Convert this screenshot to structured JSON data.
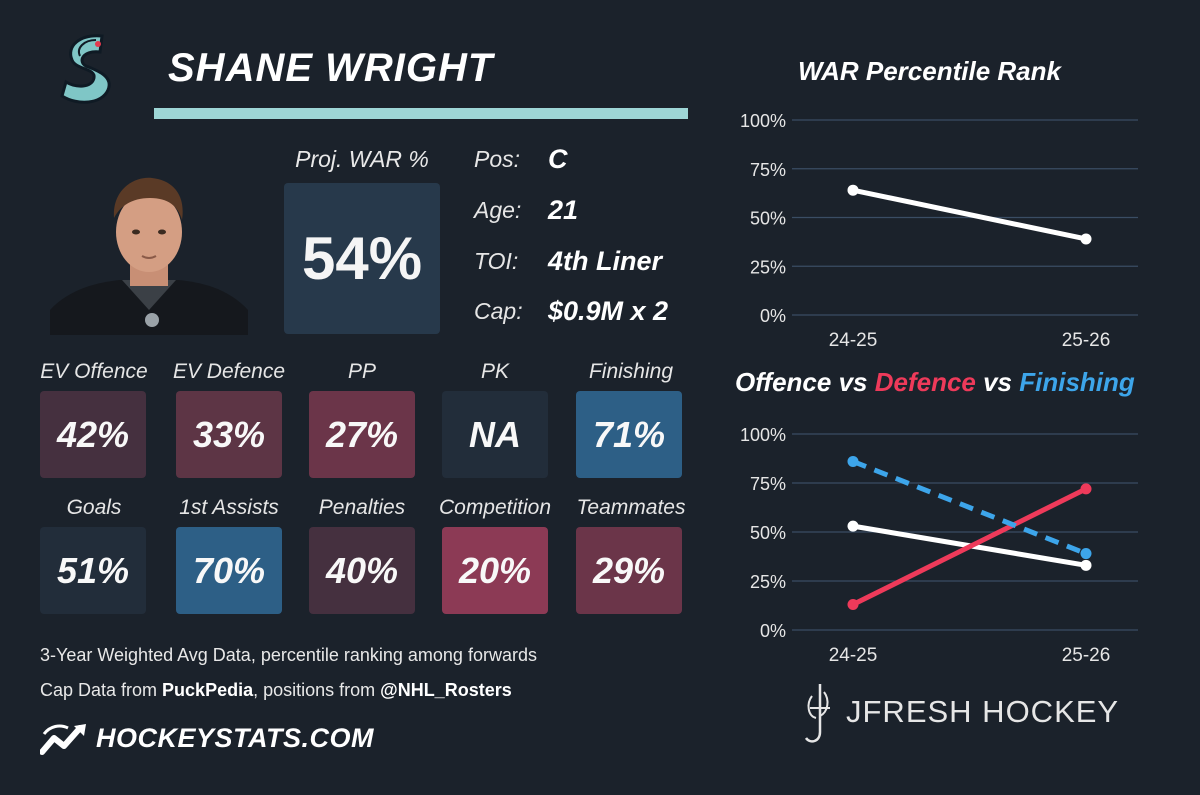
{
  "player": {
    "name": "SHANE WRIGHT",
    "team_logo": "seattle-kraken-logo",
    "photo": "player-headshot"
  },
  "war": {
    "label": "Proj. WAR %",
    "value": "54%",
    "color": "#27394b"
  },
  "info": [
    {
      "label": "Pos:",
      "value": "C"
    },
    {
      "label": "Age:",
      "value": "21"
    },
    {
      "label": "TOI:",
      "value": "4th Liner"
    },
    {
      "label": "Cap:",
      "value": "$0.9M x 2"
    }
  ],
  "tiles": [
    {
      "label": "EV Offence",
      "value": "42%",
      "color": "#45303f"
    },
    {
      "label": "EV Defence",
      "value": "33%",
      "color": "#5d3545"
    },
    {
      "label": "PP",
      "value": "27%",
      "color": "#6b3549"
    },
    {
      "label": "PK",
      "value": "NA",
      "color": "#222d3a"
    },
    {
      "label": "Finishing",
      "value": "71%",
      "color": "#2d5f86"
    },
    {
      "label": "Goals",
      "value": "51%",
      "color": "#222d3a"
    },
    {
      "label": "1st Assists",
      "value": "70%",
      "color": "#2d5f86"
    },
    {
      "label": "Penalties",
      "value": "40%",
      "color": "#45303f"
    },
    {
      "label": "Competition",
      "value": "20%",
      "color": "#8c3a55"
    },
    {
      "label": "Teammates",
      "value": "29%",
      "color": "#6b3549"
    }
  ],
  "notes": {
    "line1": "3-Year Weighted Avg Data, percentile ranking among forwards",
    "line2_prefix": "Cap Data from ",
    "line2_source": "PuckPedia",
    "line2_mid": ", positions from ",
    "line2_handle": "@NHL_Rosters"
  },
  "branding": {
    "site": "HOCKEYSTATS.COM",
    "site_icon": "hockeystats-chart-icon",
    "author": "JFRESH HOCKEY",
    "author_icon": "jfresh-monogram-icon"
  },
  "chart_data": [
    {
      "type": "line",
      "title": "WAR Percentile Rank",
      "categories": [
        "24-25",
        "25-26"
      ],
      "yticks": [
        "0%",
        "25%",
        "50%",
        "75%",
        "100%"
      ],
      "ylim": [
        0,
        100
      ],
      "grid": true,
      "series": [
        {
          "values": [
            64,
            39
          ],
          "color": "#ffffff",
          "dash": false
        }
      ]
    },
    {
      "type": "line",
      "title_parts": [
        {
          "text": "Offence",
          "color": "#ffffff"
        },
        {
          "text": " vs ",
          "color": "#ffffff"
        },
        {
          "text": "Defence",
          "color": "#ee3a5a"
        },
        {
          "text": " vs ",
          "color": "#ffffff"
        },
        {
          "text": "Finishing",
          "color": "#3da5ea"
        }
      ],
      "categories": [
        "24-25",
        "25-26"
      ],
      "yticks": [
        "0%",
        "25%",
        "50%",
        "75%",
        "100%"
      ],
      "ylim": [
        0,
        100
      ],
      "grid": true,
      "series": [
        {
          "name": "Offence",
          "values": [
            53,
            33
          ],
          "color": "#ffffff",
          "dash": false
        },
        {
          "name": "Defence",
          "values": [
            13,
            72
          ],
          "color": "#ee3a5a",
          "dash": false
        },
        {
          "name": "Finishing",
          "values": [
            86,
            39
          ],
          "color": "#3da5ea",
          "dash": true
        }
      ]
    }
  ]
}
